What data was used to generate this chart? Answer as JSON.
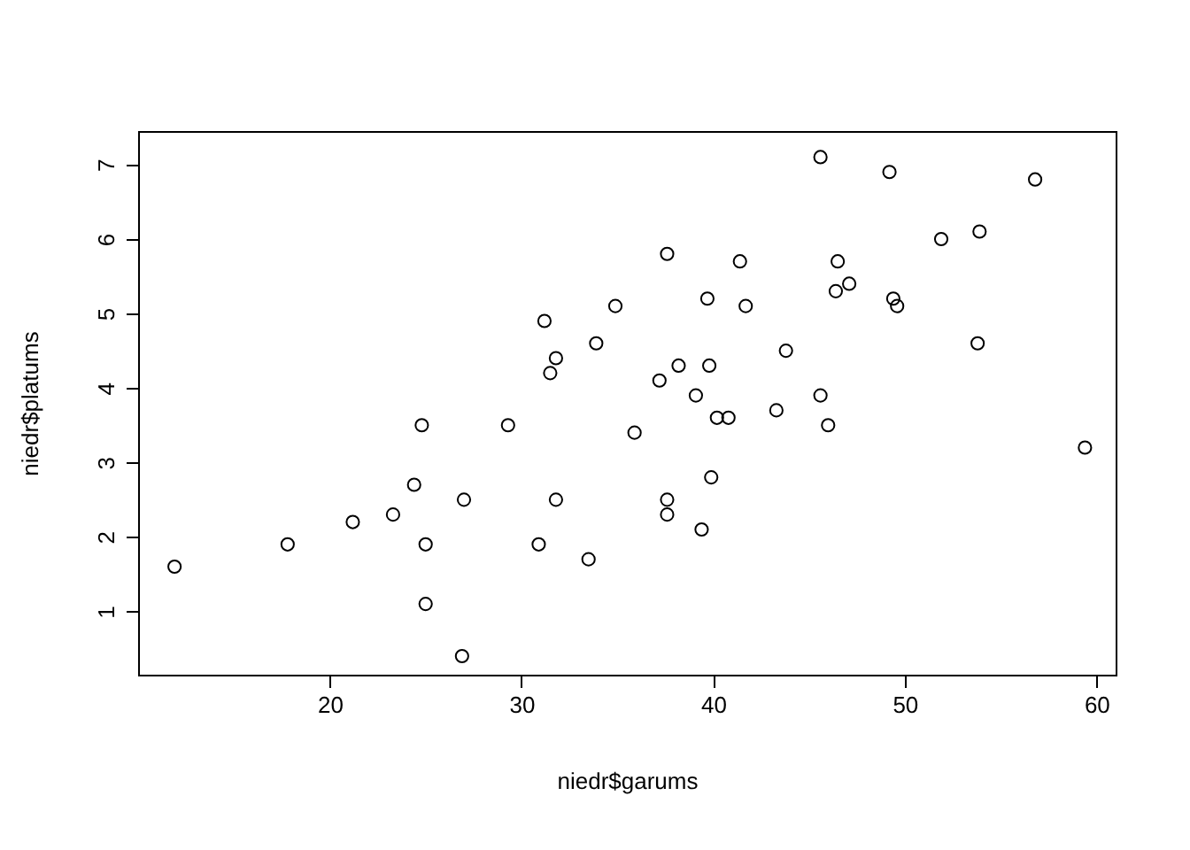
{
  "chart_data": {
    "type": "scatter",
    "xlabel": "niedr$garums",
    "ylabel": "niedr$platums",
    "marker": "circle",
    "xlim": [
      10,
      61
    ],
    "ylim": [
      0.15,
      7.45
    ],
    "xticks": [
      20,
      30,
      40,
      50,
      60
    ],
    "yticks": [
      1,
      2,
      3,
      4,
      5,
      6,
      7
    ],
    "series": [
      {
        "color": "#000000",
        "x": [
          11.9,
          17.8,
          21.2,
          23.3,
          24.4,
          24.8,
          25.0,
          25.0,
          26.9,
          27.0,
          29.3,
          30.9,
          31.2,
          31.5,
          31.8,
          31.8,
          33.5,
          33.9,
          34.9,
          35.9,
          37.2,
          37.6,
          37.6,
          37.6,
          38.2,
          39.1,
          39.4,
          39.7,
          39.8,
          39.9,
          40.2,
          40.8,
          41.4,
          41.7,
          43.3,
          43.8,
          45.6,
          45.6,
          46.0,
          46.4,
          46.5,
          47.1,
          49.2,
          49.4,
          49.6,
          51.9,
          53.9,
          53.8,
          56.8,
          59.4
        ],
        "values": [
          1.6,
          1.9,
          2.2,
          2.3,
          2.7,
          3.5,
          1.9,
          1.1,
          0.4,
          2.5,
          3.5,
          1.9,
          4.9,
          4.2,
          4.4,
          2.5,
          1.7,
          4.6,
          5.1,
          3.4,
          4.1,
          5.8,
          2.5,
          2.3,
          4.3,
          3.9,
          2.1,
          5.2,
          4.3,
          2.8,
          3.6,
          3.6,
          5.7,
          5.1,
          3.7,
          4.5,
          7.1,
          3.9,
          3.5,
          5.3,
          5.7,
          5.4,
          6.9,
          5.2,
          5.1,
          6.0,
          6.1,
          4.6,
          6.8,
          3.2
        ]
      }
    ]
  }
}
